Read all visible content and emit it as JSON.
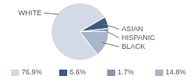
{
  "chart_data": {
    "type": "pie",
    "categories": [
      "WHITE",
      "ASIAN",
      "HISPANIC",
      "BLACK"
    ],
    "values": [
      76.9,
      6.6,
      1.7,
      14.8
    ],
    "value_labels": [
      "76.9%",
      "6.6%",
      "1.7%",
      "14.8%"
    ],
    "colors": [
      "#d3dae5",
      "#3e5a7f",
      "#8597b0",
      "#a8b6c9"
    ],
    "legend": "bottom"
  }
}
